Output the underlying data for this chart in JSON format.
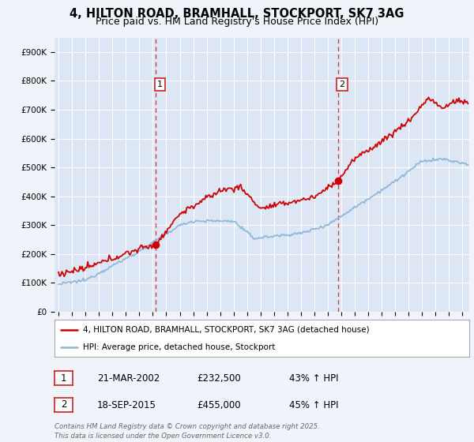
{
  "title_line1": "4, HILTON ROAD, BRAMHALL, STOCKPORT, SK7 3AG",
  "title_line2": "Price paid vs. HM Land Registry's House Price Index (HPI)",
  "ylim": [
    0,
    950000
  ],
  "yticks": [
    0,
    100000,
    200000,
    300000,
    400000,
    500000,
    600000,
    700000,
    800000,
    900000
  ],
  "ytick_labels": [
    "£0",
    "£100K",
    "£200K",
    "£300K",
    "£400K",
    "£500K",
    "£600K",
    "£700K",
    "£800K",
    "£900K"
  ],
  "background_color": "#f0f4fa",
  "plot_bg_color": "#dce6f5",
  "grid_color": "#ffffff",
  "red_line_color": "#cc0000",
  "blue_line_color": "#90b8d8",
  "sale1_year": 2002.22,
  "sale1_price": 232500,
  "sale2_year": 2015.75,
  "sale2_price": 455000,
  "sale1_label": "1",
  "sale2_label": "2",
  "vline_color": "#cc2222",
  "legend_label_red": "4, HILTON ROAD, BRAMHALL, STOCKPORT, SK7 3AG (detached house)",
  "legend_label_blue": "HPI: Average price, detached house, Stockport",
  "annotation1_date": "21-MAR-2002",
  "annotation1_price": "£232,500",
  "annotation1_hpi": "43% ↑ HPI",
  "annotation2_date": "18-SEP-2015",
  "annotation2_price": "£455,000",
  "annotation2_hpi": "45% ↑ HPI",
  "footer": "Contains HM Land Registry data © Crown copyright and database right 2025.\nThis data is licensed under the Open Government Licence v3.0.",
  "xlim_start": 1994.7,
  "xlim_end": 2025.5,
  "title_fontsize": 10.5,
  "subtitle_fontsize": 9.0
}
